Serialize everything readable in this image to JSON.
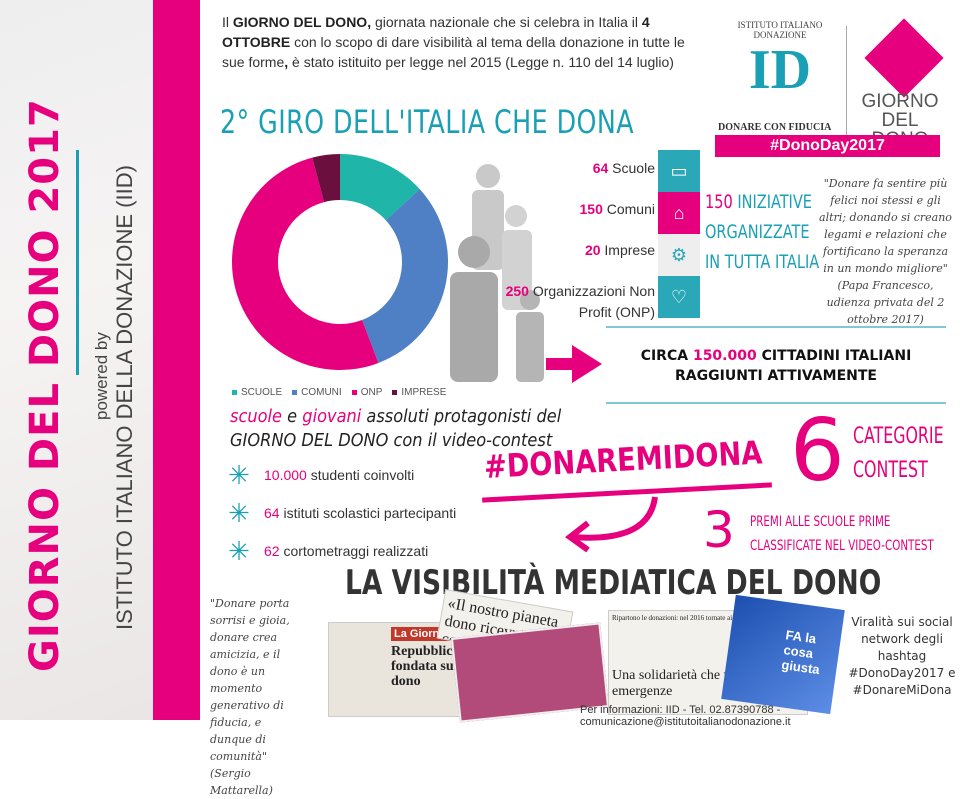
{
  "sidebar": {
    "title": "GIORNO DEL DONO 2017",
    "powered_by": "powered by",
    "institute": "ISTITUTO ITALIANO DELLA DONAZIONE (IID)"
  },
  "intro": {
    "p1": "Il ",
    "b1": "GIORNO DEL DONO,",
    "p2": " giornata nazionale che si celebra in Italia il ",
    "b2": "4 OTTOBRE",
    "p3": " con lo scopo di dare visibilità al tema della donazione in tutte le sue forme",
    "b3": ",",
    "p4": " è stato istituito per legge nel 2015 (Legge n. 110 del 14 luglio)"
  },
  "title": "2° GIRO DELL'ITALIA CHE DONA",
  "logo": {
    "arc": "ISTITUTO ITALIANO DONAZIONE",
    "mark": "ID",
    "tagline": "DONARE CON FIDUCIA",
    "giorno": "GIORNO",
    "del_dono": "DEL DONO",
    "hashtag": "#DonoDay2017"
  },
  "chart_data": {
    "type": "pie",
    "variant": "donut",
    "categories": [
      "SCUOLE",
      "COMUNI",
      "ONP",
      "IMPRESE"
    ],
    "values": [
      64,
      150,
      250,
      20
    ],
    "colors": [
      "#1fb5a8",
      "#4f7fc4",
      "#e6007e",
      "#6b0f3f"
    ],
    "legend": "bottom"
  },
  "counts": [
    {
      "num": "64",
      "label": " Scuole",
      "icon": "book-icon",
      "tag": "SCUOLE",
      "color": "#2aa8b8"
    },
    {
      "num": "150",
      "label": " Comuni",
      "icon": "building-icon",
      "tag": "COMUNI",
      "color": "#e6007e"
    },
    {
      "num": "20",
      "label": " Imprese",
      "icon": "gears-icon",
      "tag": "IMPRESE",
      "color": "#eeeeee"
    },
    {
      "num": "250",
      "label": " Organizzazioni Non Profit (ONP)",
      "icon": "heart-icon",
      "tag": "NON PROFIT",
      "color": "#2aa8b8"
    }
  ],
  "iniziative": {
    "num": "150",
    "l1": " INIZIATIVE",
    "l2": "ORGANIZZATE",
    "l3": "IN TUTTA ITALIA"
  },
  "papa_quote": "\"Donare fa sentire più felici noi stessi e gli altri; donando si creano legami e relazioni che fortificano la speranza in un mondo migliore\" (Papa Francesco, udienza privata del 2 ottobre 2017)",
  "circa": {
    "pre": "CIRCA ",
    "num": "150.000",
    "post": " CITTADINI ITALIANI",
    "line2": "RAGGIUNTI ATTIVAMENTE"
  },
  "protag": {
    "w1": "scuole",
    "w2": " e ",
    "w3": "giovani",
    "w4": " assoluti protagonisti del",
    "line2": "GIORNO DEL DONO",
    "line2b": " con il video-contest"
  },
  "stats": [
    {
      "num": "10.000",
      "label": " studenti coinvolti"
    },
    {
      "num": "64",
      "label": " istituti scolastici partecipanti"
    },
    {
      "num": "62",
      "label": " cortometraggi realizzati"
    }
  ],
  "contest": {
    "hashtag": "#DONAREMIDONA",
    "six": "6",
    "cat1": "CATEGORIE",
    "cat2": "CONTEST",
    "three": "3",
    "premi1": "PREMI ALLE SCUOLE PRIME",
    "premi2": "CLASSIFICATE NEL VIDEO-CONTEST"
  },
  "media": {
    "title": "LA VISIBILITÀ MEDIATICA DEL DONO",
    "clip1_head": "La Giornata",
    "clip1_title": "Repubblica fondata sul dono",
    "clip2": "«Il nostro pianeta dono ricevuto da con",
    "clip3_top": "Ripartono le donazioni: nel 2016 tornate ai livelli pre-crisi",
    "clip3": "Una solidarietà che va oltre le emergenze",
    "clip4": "FA la cosa giusta"
  },
  "mattarella_quote": "\"Donare porta sorrisi e gioia, donare crea amicizia, e il dono è un momento generativo di fiducia, e dunque di comunità\" (Sergio Mattarella)",
  "viral": "Viralità sui social network degli hashtag #DonoDay2017 e #DonareMiDona",
  "info": "Per informazioni: IID - Tel. 02.87390788 - comunicazione@istitutoitalianodonazione.it"
}
